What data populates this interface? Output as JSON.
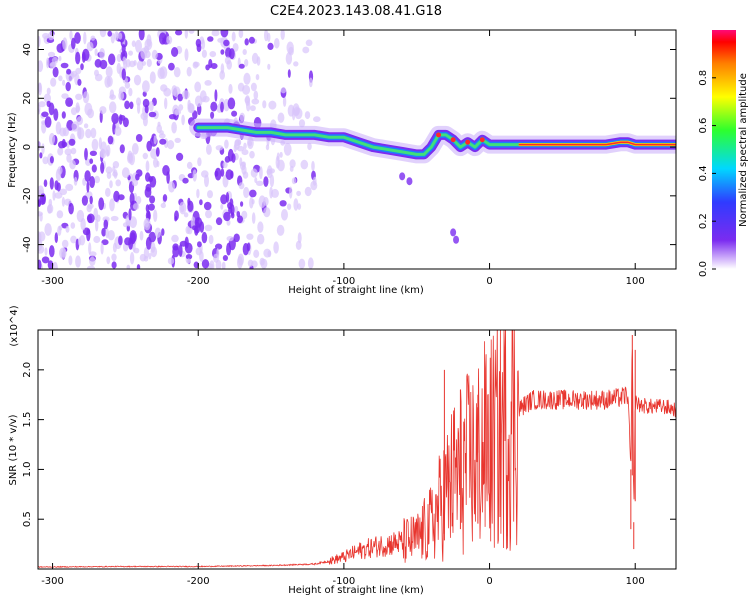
{
  "chart_data": [
    {
      "type": "heatmap",
      "title": "C2E4.2023.143.08.41.G18",
      "xlabel": "Height of straight line (km)",
      "ylabel": "Frequency (Hz)",
      "xlim": [
        -310,
        128
      ],
      "ylim": [
        -50,
        48
      ],
      "xticks": [
        -300,
        -200,
        -100,
        0,
        100
      ],
      "yticks": [
        -40,
        -20,
        0,
        20,
        40
      ],
      "colorbar": {
        "label": "Normalized spectral amplitude",
        "range": [
          0,
          1
        ],
        "ticks": [
          0.0,
          0.2,
          0.4,
          0.6,
          0.8
        ],
        "colormap": "rainbow (violet low → red/magenta high)"
      },
      "ridge": [
        [
          -200,
          8
        ],
        [
          -190,
          8
        ],
        [
          -180,
          8
        ],
        [
          -170,
          7
        ],
        [
          -160,
          6
        ],
        [
          -150,
          6
        ],
        [
          -140,
          5
        ],
        [
          -130,
          5
        ],
        [
          -120,
          5
        ],
        [
          -110,
          4
        ],
        [
          -100,
          4
        ],
        [
          -90,
          2
        ],
        [
          -80,
          0
        ],
        [
          -70,
          -1
        ],
        [
          -60,
          -2
        ],
        [
          -50,
          -3
        ],
        [
          -45,
          -3
        ],
        [
          -40,
          0
        ],
        [
          -35,
          5
        ],
        [
          -30,
          5
        ],
        [
          -25,
          3
        ],
        [
          -20,
          0
        ],
        [
          -15,
          2
        ],
        [
          -10,
          0
        ],
        [
          -5,
          3
        ],
        [
          0,
          1
        ],
        [
          20,
          1
        ],
        [
          40,
          1
        ],
        [
          60,
          1
        ],
        [
          80,
          1
        ],
        [
          90,
          2
        ],
        [
          95,
          2
        ],
        [
          100,
          1
        ],
        [
          128,
          1
        ]
      ],
      "colors": {
        "low": "#7b2cf0",
        "faint": "#d8c4fb",
        "ridge_mid": "#1f7bff",
        "ridge_high": "#3fe07a",
        "ridge_peak": "#ff2a2a"
      }
    },
    {
      "type": "line",
      "title": "",
      "xlabel": "Height of straight line (km)",
      "ylabel": "SNR (10 * v/v)",
      "y_multiplier": "(x10^4)",
      "xlim": [
        -310,
        128
      ],
      "ylim": [
        0,
        24000
      ],
      "xticks": [
        -300,
        -200,
        -100,
        0,
        100
      ],
      "yticks": [
        5000,
        10000,
        15000,
        20000
      ],
      "ytick_labels": [
        "0.5",
        "1.0",
        "1.5",
        "2.0"
      ],
      "series": [
        {
          "color": "#e8352e",
          "x": [
            -310,
            -250,
            -200,
            -150,
            -120,
            -110,
            -100,
            -90,
            -80,
            -70,
            -60,
            -50,
            -40,
            -35,
            -30,
            -25,
            -20,
            -15,
            -10,
            -5,
            0,
            5,
            10,
            15,
            20,
            25,
            30,
            40,
            50,
            60,
            70,
            80,
            90,
            95,
            97,
            98,
            99,
            100,
            101,
            102,
            110,
            120,
            128
          ],
          "values": [
            200,
            250,
            250,
            350,
            500,
            800,
            1200,
            1800,
            2200,
            2500,
            2700,
            3000,
            4500,
            6000,
            7500,
            9000,
            10000,
            10500,
            11000,
            12000,
            12500,
            13000,
            14000,
            15000,
            16000,
            16600,
            17000,
            17000,
            17000,
            17000,
            17000,
            17000,
            17200,
            17500,
            10000,
            23500,
            5000,
            17000,
            16800,
            16500,
            16300,
            16300,
            16000
          ]
        }
      ]
    }
  ]
}
